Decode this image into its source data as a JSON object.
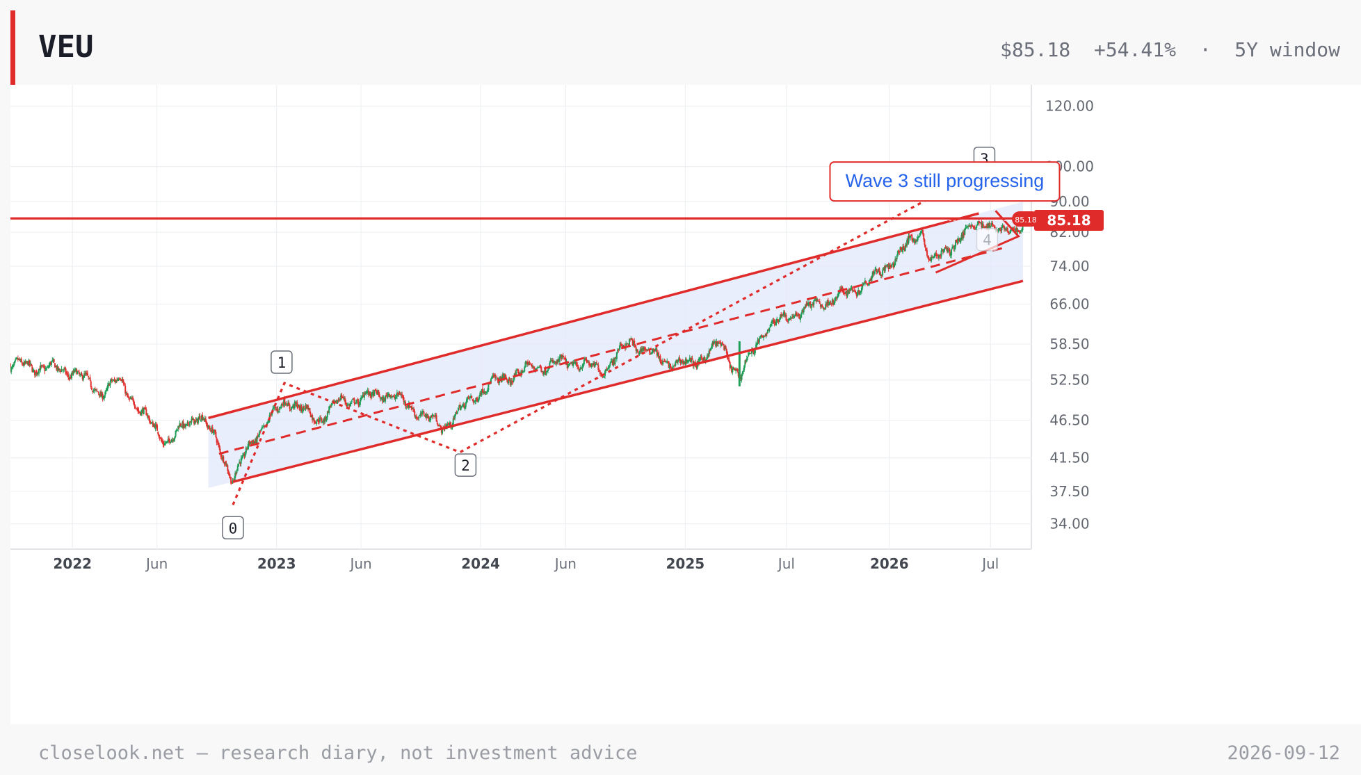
{
  "header": {
    "ticker": "VEU",
    "price": "$85.18",
    "change": "+54.41%",
    "separator": "·",
    "window": "5Y window"
  },
  "footer": {
    "left": "closelook.net — research diary, not investment advice",
    "right": "2026-09-12"
  },
  "colors": {
    "accent": "#e02b2b",
    "up_candle": "#1e9e57",
    "down_candle": "#e0312e",
    "channel_fill": "#e4eafc",
    "callout_text": "#2563eb"
  },
  "chart_data": {
    "type": "candlestick",
    "scale": "log",
    "ylim": [
      31.5,
      128
    ],
    "y_ticks": [
      {
        "value": 120,
        "label": "120.00"
      },
      {
        "value": 100,
        "label": "100.00"
      },
      {
        "value": 90,
        "label": "90.00"
      },
      {
        "value": 82,
        "label": "82.00"
      },
      {
        "value": 74,
        "label": "74.00"
      },
      {
        "value": 66,
        "label": "66.00"
      },
      {
        "value": 58.5,
        "label": "58.50"
      },
      {
        "value": 52.5,
        "label": "52.50"
      },
      {
        "value": 46.5,
        "label": "46.50"
      },
      {
        "value": 41.5,
        "label": "41.50"
      },
      {
        "value": 37.5,
        "label": "37.50"
      },
      {
        "value": 34,
        "label": "34.00"
      }
    ],
    "xlim": [
      "2021-09-12",
      "2026-09-12"
    ],
    "x_ticks": [
      {
        "date": "2022-01-01",
        "label": "2022",
        "bold": true
      },
      {
        "date": "2022-06-01",
        "label": "Jun",
        "bold": false
      },
      {
        "date": "2023-01-01",
        "label": "2023",
        "bold": true
      },
      {
        "date": "2023-06-01",
        "label": "Jun",
        "bold": false
      },
      {
        "date": "2024-01-01",
        "label": "2024",
        "bold": true
      },
      {
        "date": "2024-06-01",
        "label": "Jun",
        "bold": false
      },
      {
        "date": "2025-01-01",
        "label": "2025",
        "bold": true
      },
      {
        "date": "2025-07-01",
        "label": "Jul",
        "bold": false
      },
      {
        "date": "2026-01-01",
        "label": "2026",
        "bold": true
      },
      {
        "date": "2026-07-01",
        "label": "Jul",
        "bold": false
      }
    ],
    "price_path": [
      {
        "date": "2021-09-12",
        "close": 55.0
      },
      {
        "date": "2021-11-15",
        "close": 54.5
      },
      {
        "date": "2022-01-05",
        "close": 53.8
      },
      {
        "date": "2022-02-20",
        "close": 50.5
      },
      {
        "date": "2022-03-25",
        "close": 52.5
      },
      {
        "date": "2022-05-10",
        "close": 47.0
      },
      {
        "date": "2022-06-20",
        "close": 43.5
      },
      {
        "date": "2022-08-15",
        "close": 47.5
      },
      {
        "date": "2022-09-20",
        "close": 43.0
      },
      {
        "date": "2022-10-15",
        "close": 38.8
      },
      {
        "date": "2022-11-20",
        "close": 44.0
      },
      {
        "date": "2023-01-20",
        "close": 49.5
      },
      {
        "date": "2023-03-15",
        "close": 46.5
      },
      {
        "date": "2023-04-20",
        "close": 49.0
      },
      {
        "date": "2023-07-20",
        "close": 50.5
      },
      {
        "date": "2023-10-25",
        "close": 45.5
      },
      {
        "date": "2024-01-10",
        "close": 51.5
      },
      {
        "date": "2024-04-01",
        "close": 54.5
      },
      {
        "date": "2024-06-15",
        "close": 55.5
      },
      {
        "date": "2024-08-05",
        "close": 54.0
      },
      {
        "date": "2024-09-25",
        "close": 59.0
      },
      {
        "date": "2024-11-25",
        "close": 55.5
      },
      {
        "date": "2025-01-10",
        "close": 55.0
      },
      {
        "date": "2025-03-05",
        "close": 58.5
      },
      {
        "date": "2025-04-08",
        "close": 53.0
      },
      {
        "date": "2025-05-25",
        "close": 61.5
      },
      {
        "date": "2025-08-01",
        "close": 65.0
      },
      {
        "date": "2025-10-15",
        "close": 68.0
      },
      {
        "date": "2025-12-15",
        "close": 72.5
      },
      {
        "date": "2026-03-01",
        "close": 82.5
      },
      {
        "date": "2026-03-15",
        "close": 75.0
      },
      {
        "date": "2026-04-05",
        "close": 76.5
      },
      {
        "date": "2026-05-15",
        "close": 82.0
      },
      {
        "date": "2026-06-25",
        "close": 85.0
      },
      {
        "date": "2026-07-20",
        "close": 81.5
      },
      {
        "date": "2026-09-12",
        "close": 85.18
      }
    ],
    "last_price": 85.18,
    "last_price_label": "85.18",
    "current_price_marker": "85.18",
    "channel": {
      "upper": [
        {
          "date": "2022-09-01",
          "value": 46.8
        },
        {
          "date": "2026-06-10",
          "value": 86.8
        }
      ],
      "lower": [
        {
          "date": "2022-10-15",
          "value": 38.6
        },
        {
          "date": "2026-08-28",
          "value": 70.8
        }
      ],
      "midline": [
        {
          "date": "2022-09-20",
          "value": 42.0
        },
        {
          "date": "2026-08-01",
          "value": 78.5
        }
      ]
    },
    "wave_path": [
      {
        "date": "2022-10-15",
        "value": 36.0
      },
      {
        "date": "2023-01-15",
        "value": 52.0
      },
      {
        "date": "2023-11-25",
        "value": 42.2
      },
      {
        "date": "2026-04-20",
        "value": 94.0
      }
    ],
    "triangle": [
      {
        "date": "2026-03-25",
        "value": 72.6
      },
      {
        "date": "2026-08-20",
        "value": 81.0
      },
      {
        "date": "2026-07-10",
        "value": 87.5
      }
    ],
    "wave_labels": [
      {
        "label": "0",
        "date": "2022-10-15",
        "value": 33.6
      },
      {
        "label": "1",
        "date": "2023-01-10",
        "value": 55.4
      },
      {
        "label": "2",
        "date": "2023-12-05",
        "value": 40.6
      },
      {
        "label": "3",
        "date": "2026-06-20",
        "value": 102.5
      },
      {
        "label": "4",
        "date": "2026-06-25",
        "value": 80.2
      }
    ],
    "annotation": {
      "text": "Wave 3 still progressing",
      "date": "2026-03-10",
      "value": 96.0
    },
    "resistance": 85.5,
    "grid": true
  }
}
